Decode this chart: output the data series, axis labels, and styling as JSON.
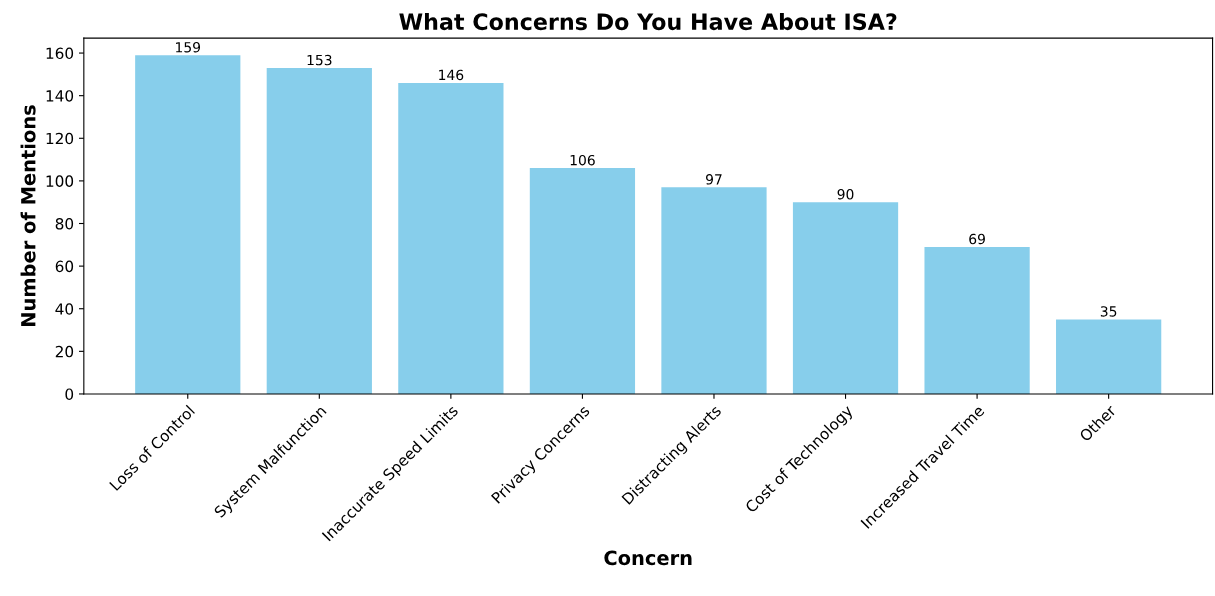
{
  "chart_data": {
    "type": "bar",
    "title": "What Concerns Do You Have About ISA?",
    "xlabel": "Concern",
    "ylabel": "Number of Mentions",
    "categories": [
      "Loss of Control",
      "System Malfunction",
      "Inaccurate Speed Limits",
      "Privacy Concerns",
      "Distracting Alerts",
      "Cost of Technology",
      "Increased Travel Time",
      "Other"
    ],
    "values": [
      159,
      153,
      146,
      106,
      97,
      90,
      69,
      35
    ],
    "color": "#87ceeb",
    "data_labels": true,
    "ylim": [
      0,
      167
    ],
    "yticks": [
      0,
      20,
      40,
      60,
      80,
      100,
      120,
      140,
      160
    ],
    "grid": false,
    "legend": false
  }
}
